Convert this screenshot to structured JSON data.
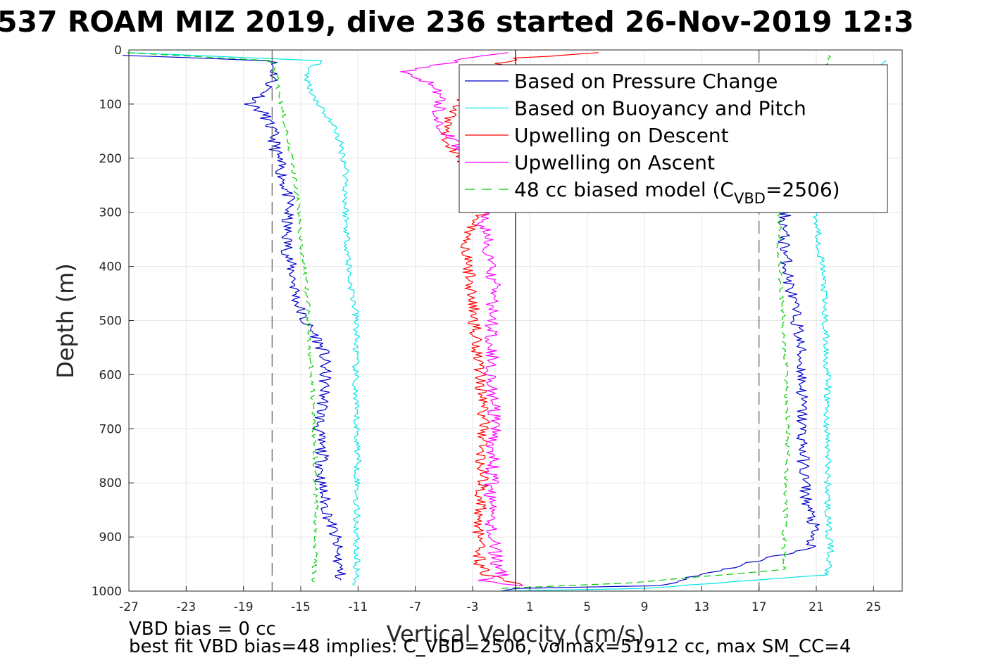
{
  "title": "537 ROAM MIZ 2019, dive 236 started 26-Nov-2019 12:3",
  "footer": {
    "line1": "VBD bias = 0 cc",
    "line2": "best fit VBD bias=48 implies: C_VBD=2506, volmax=51912 cc, max SM_CC=4"
  },
  "legend_placement": "top-right",
  "legend_last_prefix": "48 cc biased model (C",
  "legend_last_sub": "VBD",
  "legend_last_suffix": "=2506)",
  "colors": {
    "pressure": "#0000cc",
    "buoyancy": "#00e5e5",
    "descent": "#ff0000",
    "ascent": "#ff00ff",
    "model": "#00cc00",
    "reference": "#000000"
  },
  "chart_data": {
    "type": "line",
    "title": "537 ROAM MIZ 2019, dive 236 started 26-Nov-2019 12:3",
    "xlabel": "Vertical Velocity (cm/s)",
    "ylabel": "Depth (m)",
    "xlim": [
      -27,
      27
    ],
    "ylim": [
      0,
      1000
    ],
    "y_reversed": true,
    "grid": true,
    "xticks": [
      -27,
      -23,
      -19,
      -15,
      -11,
      -7,
      -3,
      1,
      5,
      9,
      13,
      17,
      21,
      25
    ],
    "yticks": [
      0,
      100,
      200,
      300,
      400,
      500,
      600,
      700,
      800,
      900,
      1000
    ],
    "vlines": [
      {
        "x": 0,
        "style": "solid"
      },
      {
        "x": -17,
        "style": "dashed"
      },
      {
        "x": 17,
        "style": "dashed"
      }
    ],
    "series": [
      {
        "name": "Based on Pressure Change",
        "color": "#0000cc",
        "style": "solid",
        "branches": [
          {
            "x": [
              -27,
              -17,
              -16.8,
              -17.5,
              -18.5,
              -17.5,
              -17,
              -16.7,
              -16.2,
              -15.8,
              -16,
              -15.9,
              -15.5,
              -15.3,
              -14.8,
              -13.9,
              -13.4,
              -13.3,
              -13.4,
              -13.8,
              -13.5,
              -13.6,
              -13.2,
              -12.6,
              -12.2
            ],
            "y": [
              10,
              20,
              50,
              80,
              100,
              120,
              150,
              190,
              240,
              280,
              320,
              380,
              420,
              460,
              500,
              530,
              560,
              600,
              650,
              700,
              750,
              800,
              850,
              900,
              980
            ]
          },
          {
            "x": [
              20.2,
              19.8,
              19.2,
              18.9,
              18.8,
              18.7,
              18.9,
              19.1,
              19.4,
              19.7,
              19.9,
              20.0,
              20.0,
              20.0,
              20.1,
              20.3,
              20.8,
              20.5,
              10,
              0,
              -1
            ],
            "y": [
              60,
              120,
              200,
              260,
              300,
              340,
              390,
              430,
              470,
              510,
              560,
              600,
              650,
              700,
              760,
              830,
              880,
              920,
              990,
              995,
              1000
            ]
          }
        ]
      },
      {
        "name": "Based on Buoyancy and Pitch",
        "color": "#00e5e5",
        "style": "solid",
        "branches": [
          {
            "x": [
              -27,
              -13.5,
              -14.7,
              -14.2,
              -12.5,
              -11.8,
              -11.9,
              -11.8,
              -11.6,
              -11.2,
              -11.1,
              -11.2,
              -11.2,
              -11.1,
              -11.0,
              -11.1,
              -11.1,
              -11.1,
              -11.2
            ],
            "y": [
              5,
              20,
              40,
              80,
              150,
              220,
              280,
              330,
              420,
              480,
              520,
              600,
              650,
              700,
              750,
              830,
              900,
              960,
              990
            ]
          },
          {
            "x": [
              26,
              21.5,
              21.3,
              21.0,
              21.2,
              21.5,
              21.6,
              21.7,
              21.8,
              21.7,
              21.8,
              21.8,
              21.8,
              22.0,
              21.8,
              9,
              -1
            ],
            "y": [
              20,
              100,
              200,
              300,
              360,
              420,
              500,
              560,
              620,
              680,
              740,
              820,
              880,
              920,
              970,
              995,
              1000
            ]
          }
        ]
      },
      {
        "name": "Upwelling on Descent",
        "color": "#ff0000",
        "style": "solid",
        "points": {
          "x": [
            5.8,
            0,
            -1.0,
            -1.6,
            -3.5,
            -4.5,
            -5.0,
            -4.0,
            -3.0,
            -2.5,
            -2.2,
            -3.3,
            -3.5,
            -3.2,
            -3.0,
            -2.8,
            -2.6,
            -2.4,
            -2.3,
            -2.2,
            -2.4,
            -2.3,
            -2.5,
            -2.6,
            -2.5,
            -2.0,
            0.5
          ],
          "y": [
            5,
            15,
            25,
            40,
            80,
            120,
            160,
            200,
            240,
            270,
            300,
            340,
            380,
            420,
            470,
            520,
            560,
            600,
            650,
            700,
            750,
            800,
            850,
            900,
            950,
            970,
            990
          ]
        }
      },
      {
        "name": "Upwelling on Ascent",
        "color": "#ff00ff",
        "style": "solid",
        "points": {
          "x": [
            -1.0,
            -8.0,
            -6.0,
            -5.2,
            -5.5,
            -5.0,
            -4.0,
            -3.0,
            -2.5,
            -2.2,
            -2.3,
            -2.0,
            -1.8,
            -1.5,
            -1.7,
            -1.6,
            -1.7,
            -1.6,
            -1.5,
            -1.6,
            -1.7,
            -1.8,
            -1.6,
            -1.3,
            -1.0,
            -2.5,
            0.5
          ],
          "y": [
            5,
            40,
            60,
            90,
            120,
            150,
            180,
            210,
            250,
            290,
            320,
            360,
            400,
            440,
            500,
            550,
            600,
            650,
            700,
            750,
            800,
            850,
            900,
            950,
            970,
            980,
            990
          ]
        }
      },
      {
        "name": "48 cc biased model (CVBD=2506)",
        "color": "#00cc00",
        "style": "dashed",
        "branches": [
          {
            "x": [
              -27,
              -17,
              -16.8,
              -16.5,
              -16.0,
              -15.5,
              -15.2,
              -15.0,
              -14.8,
              -14.6,
              -14.5,
              -14.4,
              -14.3,
              -14.2,
              -14.1,
              -14.0,
              -14.0,
              -13.9,
              -14.0,
              -14.0,
              -14.1,
              -14.1
            ],
            "y": [
              5,
              20,
              40,
              80,
              150,
              220,
              290,
              340,
              400,
              440,
              480,
              520,
              570,
              620,
              680,
              740,
              800,
              850,
              900,
              940,
              970,
              990
            ]
          },
          {
            "x": [
              22,
              18.5,
              18.5,
              18.4,
              18.4,
              18.5,
              18.6,
              18.7,
              18.8,
              18.9,
              19.0,
              19.0,
              18.9,
              18.8,
              18.7,
              8,
              -1
            ],
            "y": [
              10,
              200,
              300,
              340,
              380,
              420,
              460,
              500,
              560,
              620,
              680,
              740,
              820,
              880,
              960,
              985,
              995
            ]
          }
        ]
      }
    ]
  }
}
